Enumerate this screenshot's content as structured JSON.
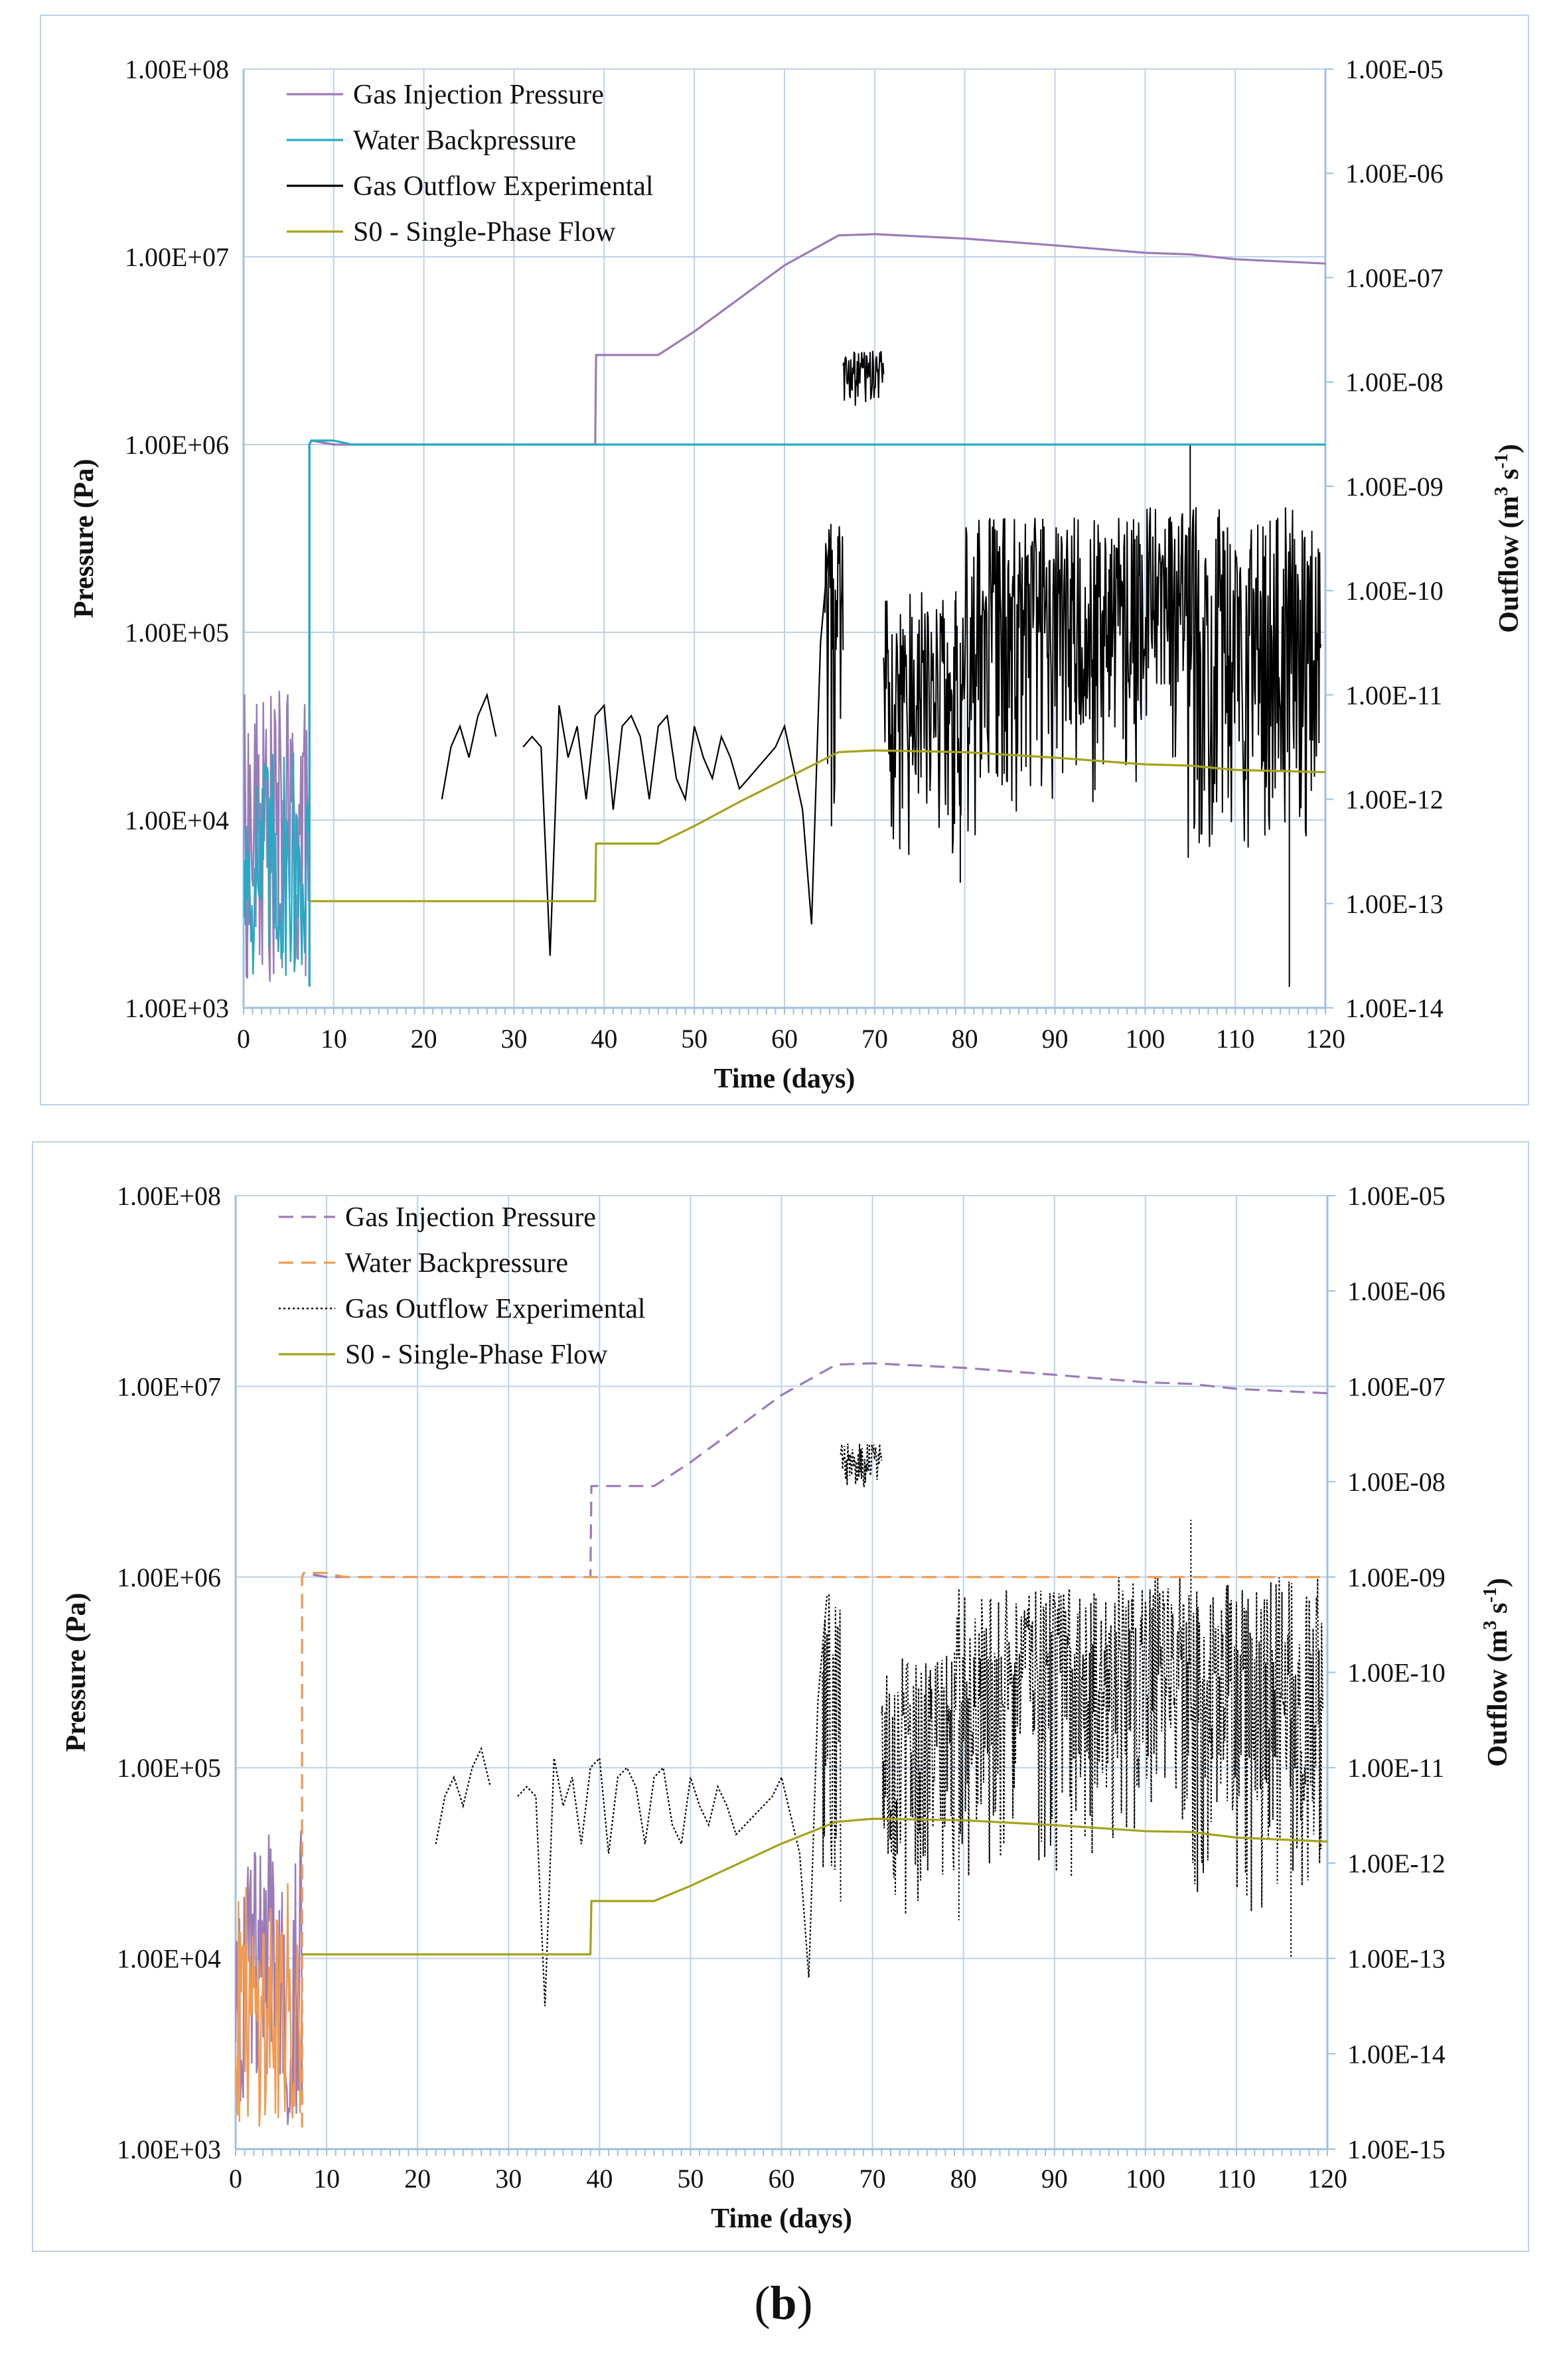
{
  "caption": {
    "open": "(",
    "letter": "b",
    "close": ")"
  },
  "colors": {
    "gas_injection": "#9b7bb8",
    "water_backpressure_a": "#27aac4",
    "water_backpressure_b": "#f39a4e",
    "gas_outflow": "#000000",
    "single_phase": "#a3a31a",
    "grid": "#bcd3e8",
    "axis": "#9cc0dd"
  },
  "chart_data": [
    {
      "type": "line",
      "panel": "a",
      "xlabel": "Time (days)",
      "ylabel": "Pressure (Pa)",
      "y2label_main": "Outflow (m",
      "y2label_sup1": "3",
      "y2label_mid": " s",
      "y2label_sup2": "-1",
      "y2label_end": ")",
      "xlim": [
        0,
        120
      ],
      "x_ticks": [
        "0",
        "10",
        "20",
        "30",
        "40",
        "50",
        "60",
        "70",
        "80",
        "90",
        "100",
        "110",
        "120"
      ],
      "ylim": [
        1000,
        100000000
      ],
      "y_ticks": [
        "1.00E+03",
        "1.00E+04",
        "1.00E+05",
        "1.00E+06",
        "1.00E+07",
        "1.00E+08"
      ],
      "y2lim_exp": [
        -14,
        -5
      ],
      "y2_ticks": [
        "1.00E-14",
        "1.00E-13",
        "1.00E-12",
        "1.00E-11",
        "1.00E-10",
        "1.00E-09",
        "1.00E-08",
        "1.00E-07",
        "1.00E-06",
        "1.00E-05"
      ],
      "legend": [
        {
          "label": "Gas Injection Pressure",
          "style": "solid",
          "color_key": "gas_injection"
        },
        {
          "label": "Water Backpressure",
          "style": "solid",
          "color_key": "water_backpressure_a"
        },
        {
          "label": "Gas Outflow Experimental",
          "style": "solid",
          "color_key": "gas_outflow"
        },
        {
          "label": "S0 - Single-Phase Flow",
          "style": "solid",
          "color_key": "single_phase"
        }
      ],
      "series": [
        {
          "name": "Gas Injection Pressure",
          "axis": "left",
          "color_key": "gas_injection",
          "dash": "",
          "noise": {
            "x0": 0,
            "x1": 7.3,
            "lo": 1300,
            "hi": 50000
          },
          "x": [
            7.3,
            7.5,
            10,
            39,
            39.1,
            46,
            50,
            55,
            60,
            66,
            70,
            80,
            90,
            100,
            105,
            110,
            120
          ],
          "values": [
            1000000,
            1050000,
            1000000,
            1000000,
            3000000,
            3000000,
            4000000,
            6000000,
            9000000,
            13000000,
            13200000,
            12500000,
            11500000,
            10500000,
            10300000,
            9700000,
            9200000
          ]
        },
        {
          "name": "Water Backpressure",
          "axis": "left",
          "color_key": "water_backpressure_a",
          "dash": "",
          "noise": {
            "x0": 0,
            "x1": 7.3,
            "lo": 1300,
            "hi": 25000
          },
          "x": [
            7.3,
            7.5,
            10,
            12,
            40,
            70,
            120
          ],
          "values": [
            1000000,
            1050000,
            1050000,
            1000000,
            1000000,
            1000000,
            1000000
          ]
        },
        {
          "name": "S0 - Single-Phase Flow",
          "axis": "left",
          "color_key": "single_phase",
          "dash": "",
          "x": [
            7.3,
            39,
            39.1,
            46,
            50,
            55,
            60,
            66,
            70,
            80,
            90,
            100,
            105,
            110,
            120
          ],
          "values": [
            3700,
            3700,
            7500,
            7500,
            9300,
            12500,
            16500,
            23000,
            23500,
            23000,
            21500,
            19800,
            19500,
            18500,
            18000
          ]
        },
        {
          "name": "Gas Outflow Experimental",
          "axis": "right",
          "color_key": "gas_outflow",
          "dash": "",
          "width": 2.2,
          "segments": [
            {
              "x": [
                22,
                23,
                24,
                25,
                26,
                27,
                28
              ],
              "values_exp": [
                -12,
                -11.5,
                -11.3,
                -11.6,
                -11.2,
                -11,
                -11.4
              ]
            },
            {
              "x": [
                31,
                32,
                33,
                34,
                35,
                36,
                37,
                38,
                39,
                40,
                41,
                42,
                43,
                44,
                45,
                46,
                47,
                48,
                49,
                50,
                51,
                52,
                53,
                54,
                55,
                56,
                57,
                58,
                59,
                60,
                61,
                62,
                63,
                64,
                65
              ],
              "values_exp": [
                -11.5,
                -11.4,
                -11.5,
                -13.5,
                -11.1,
                -11.6,
                -11.3,
                -12,
                -11.2,
                -11.1,
                -12.1,
                -11.3,
                -11.2,
                -11.4,
                -12,
                -11.3,
                -11.2,
                -11.8,
                -12,
                -11.3,
                -11.6,
                -11.8,
                -11.4,
                -11.6,
                -11.9,
                -11.8,
                -11.7,
                -11.6,
                -11.5,
                -11.3,
                -11.7,
                -12.1,
                -13.2,
                -10.5,
                -9.5
              ]
            }
          ],
          "bands": [
            {
              "x0": 64.5,
              "x1": 66.5,
              "lo": -13,
              "hi": -9.3
            },
            {
              "x0": 66.5,
              "x1": 71,
              "lo": -8.3,
              "hi": -7.7
            },
            {
              "x0": 71,
              "x1": 79,
              "lo": -12.8,
              "hi": -10
            },
            {
              "x0": 79,
              "x1": 96,
              "lo": -12.5,
              "hi": -9.3
            },
            {
              "x0": 96,
              "x1": 104,
              "lo": -12,
              "hi": -9.2
            },
            {
              "x0": 104,
              "x1": 119.5,
              "lo": -12.8,
              "hi": -9.2
            }
          ],
          "spikes": [
            {
              "x": 105,
              "value_exp": -8.6
            },
            {
              "x": 116,
              "value_exp": -13.8
            },
            {
              "x": 79.5,
              "value_exp": -12.8
            }
          ]
        }
      ]
    },
    {
      "type": "line",
      "panel": "b",
      "xlabel": "Time (days)",
      "ylabel": "Pressure (Pa)",
      "y2label_main": "Outflow (m",
      "y2label_sup1": "3",
      "y2label_mid": " s",
      "y2label_sup2": "-1",
      "y2label_end": ")",
      "xlim": [
        0,
        120
      ],
      "x_ticks": [
        "0",
        "10",
        "20",
        "30",
        "40",
        "50",
        "60",
        "70",
        "80",
        "90",
        "100",
        "110",
        "120"
      ],
      "ylim": [
        1000,
        100000000
      ],
      "y_ticks": [
        "1.00E+03",
        "1.00E+04",
        "1.00E+05",
        "1.00E+06",
        "1.00E+07",
        "1.00E+08"
      ],
      "y2lim_exp": [
        -15,
        -5
      ],
      "y2_ticks": [
        "1.00E-15",
        "1.00E-14",
        "1.00E-13",
        "1.00E-12",
        "1.00E-11",
        "1.00E-10",
        "1.00E-09",
        "1.00E-08",
        "1.00E-07",
        "1.00E-06",
        "1.00E-05"
      ],
      "legend": [
        {
          "label": "Gas Injection Pressure",
          "style": "dashed",
          "color_key": "gas_injection"
        },
        {
          "label": "Water Backpressure",
          "style": "dashed",
          "color_key": "water_backpressure_b"
        },
        {
          "label": "Gas Outflow Experimental",
          "style": "dotted",
          "color_key": "gas_outflow"
        },
        {
          "label": "S0 - Single-Phase Flow",
          "style": "solid",
          "color_key": "single_phase"
        }
      ],
      "series": [
        {
          "name": "Gas Injection Pressure",
          "axis": "left",
          "color_key": "gas_injection",
          "dash": "22 12",
          "noise": {
            "x0": 0,
            "x1": 7.3,
            "lo": 1300,
            "hi": 50000
          },
          "x": [
            7.3,
            7.5,
            10,
            39,
            39.1,
            46,
            50,
            55,
            60,
            66,
            70,
            80,
            90,
            100,
            105,
            110,
            120
          ],
          "values": [
            1000000,
            1050000,
            1000000,
            1000000,
            3000000,
            3000000,
            4000000,
            6000000,
            9000000,
            13000000,
            13200000,
            12500000,
            11500000,
            10500000,
            10300000,
            9700000,
            9200000
          ]
        },
        {
          "name": "Water Backpressure",
          "axis": "left",
          "color_key": "water_backpressure_b",
          "dash": "22 12",
          "noise": {
            "x0": 0,
            "x1": 7.3,
            "lo": 1300,
            "hi": 25000
          },
          "x": [
            7.3,
            7.5,
            10,
            12,
            40,
            70,
            120
          ],
          "values": [
            1000000,
            1050000,
            1050000,
            1000000,
            1000000,
            1000000,
            1000000
          ]
        },
        {
          "name": "S0 - Single-Phase Flow",
          "axis": "left",
          "color_key": "single_phase",
          "dash": "",
          "x": [
            7.3,
            39,
            39.1,
            46,
            50,
            55,
            60,
            66,
            70,
            80,
            90,
            100,
            105,
            110,
            120
          ],
          "values": [
            10500,
            10500,
            20000,
            20000,
            24000,
            31000,
            40000,
            52000,
            54000,
            53000,
            50000,
            46500,
            46000,
            43000,
            41000
          ]
        },
        {
          "name": "Gas Outflow Experimental",
          "axis": "right",
          "color_key": "gas_outflow",
          "dash": "3 3",
          "width": 2.2,
          "segments": [
            {
              "x": [
                22,
                23,
                24,
                25,
                26,
                27,
                28
              ],
              "values_exp": [
                -11.8,
                -11.3,
                -11.1,
                -11.4,
                -11,
                -10.8,
                -11.2
              ]
            },
            {
              "x": [
                31,
                32,
                33,
                34,
                35,
                36,
                37,
                38,
                39,
                40,
                41,
                42,
                43,
                44,
                45,
                46,
                47,
                48,
                49,
                50,
                51,
                52,
                53,
                54,
                55,
                56,
                57,
                58,
                59,
                60,
                61,
                62,
                63,
                64,
                65
              ],
              "values_exp": [
                -11.3,
                -11.2,
                -11.3,
                -13.5,
                -10.9,
                -11.4,
                -11.1,
                -11.8,
                -11,
                -10.9,
                -11.9,
                -11.1,
                -11,
                -11.2,
                -11.8,
                -11.1,
                -11,
                -11.6,
                -11.8,
                -11.1,
                -11.4,
                -11.6,
                -11.2,
                -11.4,
                -11.7,
                -11.6,
                -11.5,
                -11.4,
                -11.3,
                -11.1,
                -11.5,
                -11.9,
                -13.2,
                -10.3,
                -9.2
              ]
            }
          ],
          "bands": [
            {
              "x0": 64.5,
              "x1": 66.5,
              "lo": -12.8,
              "hi": -9.1
            },
            {
              "x0": 66.5,
              "x1": 71,
              "lo": -8.1,
              "hi": -7.6
            },
            {
              "x0": 71,
              "x1": 79,
              "lo": -12.6,
              "hi": -9.8
            },
            {
              "x0": 79,
              "x1": 96,
              "lo": -12.3,
              "hi": -9.1
            },
            {
              "x0": 96,
              "x1": 104,
              "lo": -11.8,
              "hi": -9
            },
            {
              "x0": 104,
              "x1": 119.5,
              "lo": -12.6,
              "hi": -9
            }
          ],
          "spikes": [
            {
              "x": 105,
              "value_exp": -8.4
            },
            {
              "x": 116,
              "value_exp": -13.0
            },
            {
              "x": 79.5,
              "value_exp": -12.6
            }
          ]
        }
      ]
    }
  ]
}
